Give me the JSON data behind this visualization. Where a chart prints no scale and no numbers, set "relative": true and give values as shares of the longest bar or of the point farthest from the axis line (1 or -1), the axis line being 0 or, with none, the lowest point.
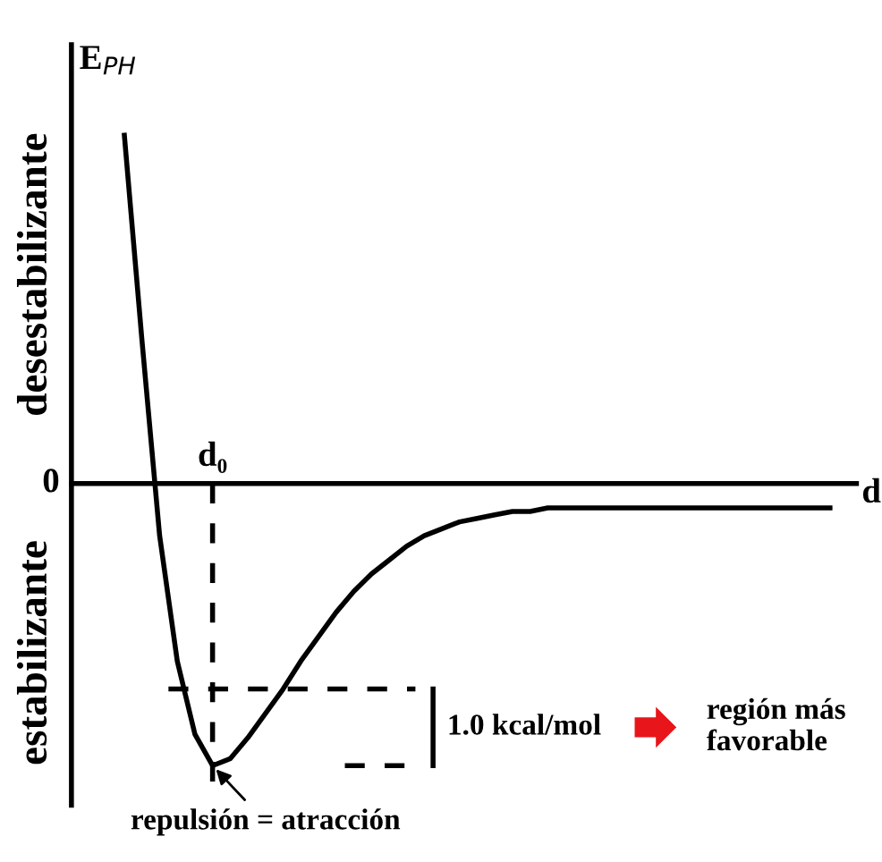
{
  "chart_data": {
    "type": "line",
    "relative": true,
    "ylabel": "E$_{PH}$",
    "xlabel": "d",
    "categories": [
      null,
      null,
      null,
      null,
      null,
      null,
      null,
      null,
      null,
      null,
      null,
      null,
      null,
      null,
      null,
      null,
      null,
      null,
      null,
      null,
      null,
      null,
      null,
      null,
      null,
      null,
      null,
      null,
      null,
      null,
      null,
      null,
      null,
      null,
      null,
      null,
      null,
      null,
      null,
      null,
      null
    ],
    "series": [
      {
        "color": "#000000",
        "values": [
          1.0,
          0.41,
          -0.15,
          -0.51,
          -0.72,
          -0.81,
          -0.79,
          -0.73,
          -0.66,
          -0.59,
          -0.51,
          -0.44,
          -0.37,
          -0.31,
          -0.26,
          -0.22,
          -0.18,
          -0.15,
          -0.13,
          -0.11,
          -0.1,
          -0.09,
          -0.08,
          -0.08,
          -0.07,
          -0.07,
          -0.07,
          -0.07,
          -0.07,
          -0.07,
          -0.07,
          -0.07,
          -0.07,
          -0.07,
          -0.07,
          -0.07,
          -0.07,
          -0.07,
          -0.07,
          -0.07,
          -0.07
        ]
      }
    ],
    "ref_lines": [
      {
        "axis": "y",
        "value": -0.59,
        "color": "#000000",
        "line_style": "dashed"
      },
      {
        "axis": "y",
        "value": -0.81,
        "color": "#000000",
        "line_style": "dashed"
      }
    ],
    "annotations": [
      "0",
      "desestabilizante",
      "estabilizante",
      "repulsión = atracción",
      "1.0 kcal/mol",
      "región más\nfavorable",
      "d₀"
    ],
    "legend": false,
    "marker": "none",
    "line_style": "solid"
  }
}
